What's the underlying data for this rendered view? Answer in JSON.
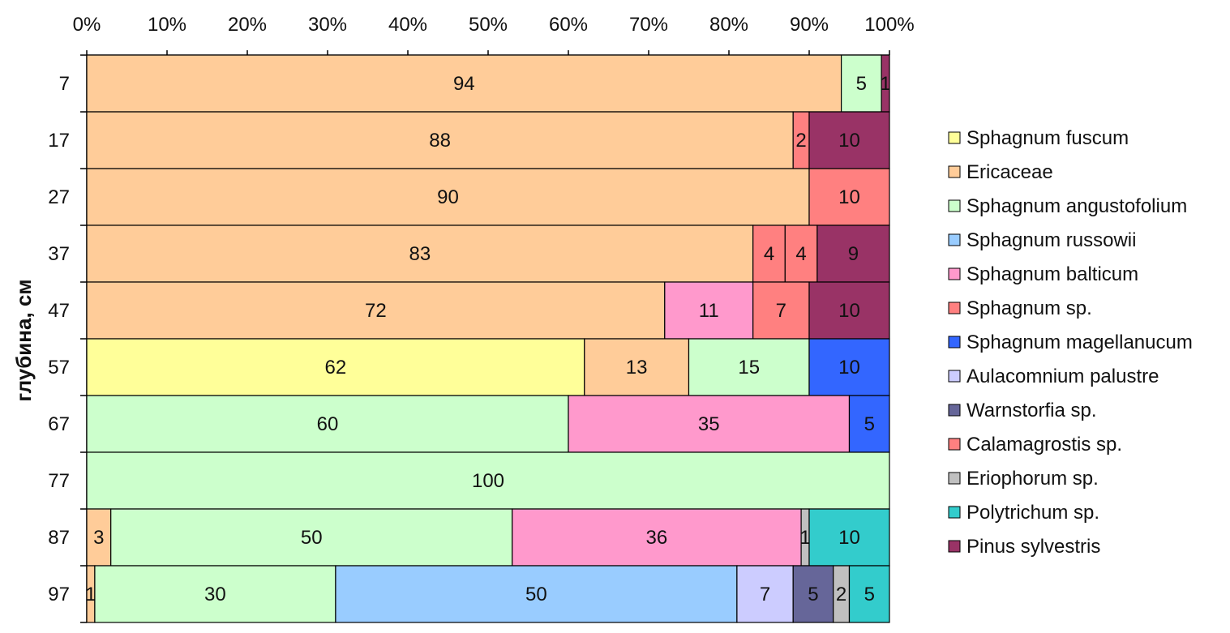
{
  "chart_data": {
    "type": "bar",
    "orientation": "horizontal",
    "stacking": "percent",
    "title": "",
    "xlabel": "",
    "ylabel": "глубина, см",
    "xlim": [
      0,
      100
    ],
    "x_ticks": [
      "0%",
      "10%",
      "20%",
      "30%",
      "40%",
      "50%",
      "60%",
      "70%",
      "80%",
      "90%",
      "100%"
    ],
    "x_axis_position": "top",
    "grid": false,
    "legend_position": "right",
    "categories": [
      "7",
      "17",
      "27",
      "37",
      "47",
      "57",
      "67",
      "77",
      "87",
      "97"
    ],
    "series": [
      {
        "name": "Sphagnum fuscum",
        "color": "#FFFF99",
        "values": [
          0,
          0,
          0,
          0,
          0,
          62,
          0,
          0,
          0,
          0
        ]
      },
      {
        "name": "Ericaceae",
        "color": "#FFCC99",
        "values": [
          94,
          88,
          90,
          83,
          72,
          13,
          0,
          0,
          3,
          1
        ]
      },
      {
        "name": "Sphagnum angustofolium",
        "color": "#CCFFCC",
        "values": [
          5,
          0,
          0,
          0,
          0,
          15,
          60,
          100,
          50,
          30
        ]
      },
      {
        "name": "Sphagnum russowii",
        "color": "#99CCFF",
        "values": [
          0,
          0,
          0,
          0,
          0,
          0,
          0,
          0,
          0,
          50
        ]
      },
      {
        "name": "Sphagnum balticum",
        "color": "#FF99CC",
        "values": [
          0,
          0,
          0,
          0,
          11,
          0,
          35,
          0,
          36,
          0
        ]
      },
      {
        "name": "Sphagnum sp.",
        "color": "#FF8080",
        "values": [
          0,
          2,
          10,
          4,
          7,
          0,
          0,
          0,
          0,
          0
        ]
      },
      {
        "name": "Sphagnum magellanucum",
        "color": "#3366FF",
        "values": [
          0,
          0,
          0,
          0,
          0,
          10,
          5,
          0,
          0,
          0
        ]
      },
      {
        "name": "Aulacomnium palustre",
        "color": "#CCCCFF",
        "values": [
          0,
          0,
          0,
          0,
          0,
          0,
          0,
          0,
          0,
          7
        ]
      },
      {
        "name": "Warnstorfia sp.",
        "color": "#666699",
        "values": [
          0,
          0,
          0,
          0,
          0,
          0,
          0,
          0,
          0,
          5
        ]
      },
      {
        "name": "Calamagrostis sp.",
        "color": "#FF8080",
        "values": [
          0,
          0,
          0,
          4,
          0,
          0,
          0,
          0,
          0,
          0
        ]
      },
      {
        "name": "Eriophorum sp.",
        "color": "#C0C0C0",
        "values": [
          0,
          0,
          0,
          0,
          0,
          0,
          0,
          0,
          1,
          2
        ]
      },
      {
        "name": "Polytrichum sp.",
        "color": "#33CCCC",
        "values": [
          0,
          0,
          0,
          0,
          0,
          0,
          0,
          0,
          10,
          5
        ]
      },
      {
        "name": "Pinus sylvestris",
        "color": "#993366",
        "values": [
          1,
          10,
          0,
          9,
          10,
          0,
          0,
          0,
          0,
          0
        ]
      }
    ]
  }
}
